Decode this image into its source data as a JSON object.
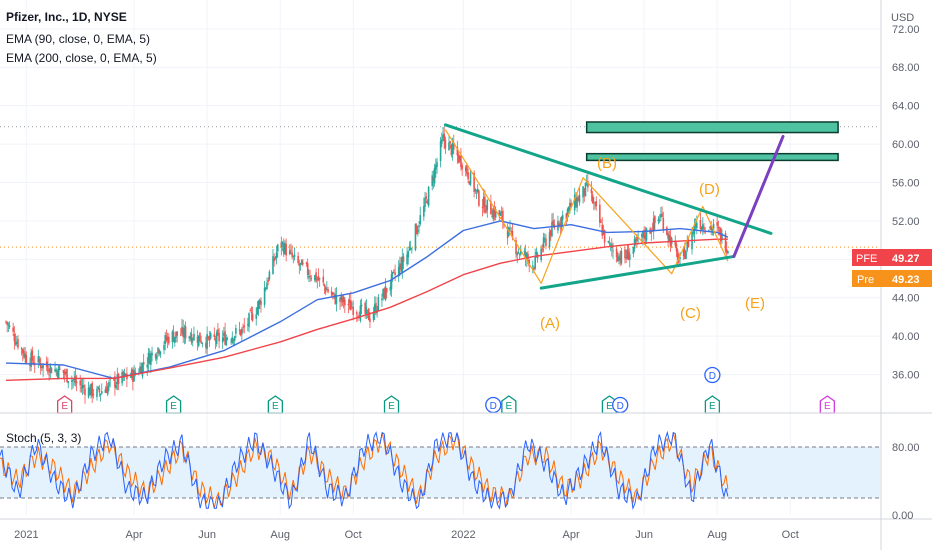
{
  "header": {
    "title": "Pfizer, Inc., 1D, NYSE",
    "indicators": [
      "EMA (90, close, 0, EMA, 5)",
      "EMA (200, close, 0, EMA, 5)"
    ]
  },
  "stoch_label": "Stoch (5, 3, 3)",
  "currency": "USD",
  "colors": {
    "up_candle": "#26a69a",
    "down_candle": "#ef5350",
    "ema90": "#3e6fe0",
    "ema200": "#f0444a",
    "wave": "#f7a21b",
    "trendline": "#12a58a",
    "projection": "#7b3fc0",
    "zone_fill": "#4fc3a1",
    "stoch_k": "#2962ff",
    "stoch_d": "#ff6d00",
    "stoch_band": "#e3f2fd"
  },
  "price_labels": [
    {
      "name": "PFE",
      "value": "49.27",
      "color": "#f0444a"
    },
    {
      "name": "Pre",
      "value": "49.23",
      "color": "#f7931a"
    }
  ],
  "wave_labels": [
    "(A)",
    "(B)",
    "(C)",
    "(D)",
    "(E)"
  ],
  "event_markers": [
    {
      "text": "E",
      "color": "#e0446a",
      "date": "2021-02-02"
    },
    {
      "text": "E",
      "color": "#089981",
      "date": "2021-05-04"
    },
    {
      "text": "E",
      "color": "#089981",
      "date": "2021-07-28"
    },
    {
      "text": "E",
      "color": "#089981",
      "date": "2021-11-02"
    },
    {
      "text": "D",
      "color": "#2962ff",
      "date": "2022-01-26"
    },
    {
      "text": "E",
      "color": "#089981",
      "date": "2022-02-08"
    },
    {
      "text": "E",
      "color": "#089981",
      "date": "2022-05-03"
    },
    {
      "text": "D",
      "color": "#2962ff",
      "date": "2022-05-12"
    },
    {
      "text": "E",
      "color": "#089981",
      "date": "2022-07-28"
    },
    {
      "text": "D",
      "color": "#2962ff",
      "date": "2022-07-28"
    },
    {
      "text": "E",
      "color": "#d63ae0",
      "date": "2022-11-01"
    }
  ],
  "chart_data": {
    "type": "line",
    "title": "Pfizer, Inc., 1D, NYSE",
    "y_unit": "USD",
    "y_ticks": [
      "72.00",
      "68.00",
      "64.00",
      "60.00",
      "56.00",
      "52.00",
      "48.00",
      "44.00",
      "40.00",
      "36.00"
    ],
    "stoch_ticks": [
      "80.00",
      "0.00"
    ],
    "x_ticks": [
      "2021",
      "Apr",
      "Jun",
      "Aug",
      "Oct",
      "2022",
      "Apr",
      "Jun",
      "Aug",
      "Oct"
    ],
    "ylim": [
      32,
      75
    ],
    "series": [
      {
        "name": "PFE",
        "style": "candles",
        "x": [
          "2020-12-15",
          "2021-01-01",
          "2021-01-15",
          "2021-02-01",
          "2021-02-15",
          "2021-03-01",
          "2021-03-15",
          "2021-04-01",
          "2021-04-15",
          "2021-05-01",
          "2021-05-15",
          "2021-06-01",
          "2021-06-15",
          "2021-07-01",
          "2021-07-15",
          "2021-08-01",
          "2021-08-15",
          "2021-09-01",
          "2021-09-15",
          "2021-10-01",
          "2021-10-15",
          "2021-11-01",
          "2021-11-15",
          "2021-12-01",
          "2021-12-15",
          "2022-01-01",
          "2022-01-15",
          "2022-02-01",
          "2022-02-15",
          "2022-03-01",
          "2022-03-15",
          "2022-04-01",
          "2022-04-15",
          "2022-05-01",
          "2022-05-15",
          "2022-06-01",
          "2022-06-15",
          "2022-07-01",
          "2022-07-15",
          "2022-08-01",
          "2022-08-10"
        ],
        "y": [
          41.5,
          37.8,
          37.0,
          36.2,
          34.8,
          34.0,
          35.2,
          36.0,
          38.0,
          40.0,
          40.3,
          39.5,
          39.8,
          40.6,
          43.5,
          49.8,
          47.5,
          46.0,
          44.0,
          43.0,
          42.0,
          45.5,
          48.5,
          54.0,
          60.5,
          58.0,
          54.0,
          52.5,
          49.0,
          47.5,
          51.0,
          53.5,
          55.5,
          49.5,
          48.0,
          50.5,
          52.5,
          47.5,
          52.0,
          51.0,
          49.27
        ]
      },
      {
        "name": "EMA (90, close, 0, EMA, 5)",
        "x": [
          "2020-12-15",
          "2021-02-01",
          "2021-03-15",
          "2021-05-01",
          "2021-06-15",
          "2021-08-01",
          "2021-09-01",
          "2021-10-01",
          "2021-11-01",
          "2021-12-01",
          "2022-01-01",
          "2022-02-01",
          "2022-03-01",
          "2022-04-01",
          "2022-05-01",
          "2022-06-01",
          "2022-07-01",
          "2022-08-01",
          "2022-08-10"
        ],
        "y": [
          37.2,
          37.0,
          35.6,
          36.8,
          38.5,
          41.5,
          43.8,
          44.5,
          45.8,
          48.2,
          51.0,
          52.0,
          51.2,
          51.6,
          50.8,
          50.9,
          51.2,
          50.8,
          50.3
        ]
      },
      {
        "name": "EMA (200, close, 0, EMA, 5)",
        "x": [
          "2020-12-15",
          "2021-02-01",
          "2021-03-15",
          "2021-05-01",
          "2021-06-15",
          "2021-08-01",
          "2021-09-01",
          "2021-10-01",
          "2021-11-01",
          "2021-12-01",
          "2022-01-01",
          "2022-02-01",
          "2022-03-01",
          "2022-04-01",
          "2022-05-01",
          "2022-06-01",
          "2022-07-01",
          "2022-08-01",
          "2022-08-10"
        ],
        "y": [
          35.4,
          35.6,
          35.6,
          36.7,
          37.8,
          39.4,
          40.7,
          41.8,
          43.0,
          44.6,
          46.4,
          47.6,
          48.3,
          48.8,
          49.3,
          49.7,
          49.9,
          50.1,
          50.1
        ]
      },
      {
        "name": "wave",
        "x": [
          "2021-12-17",
          "2022-03-07",
          "2022-04-11",
          "2022-06-24",
          "2022-07-20",
          "2022-08-10"
        ],
        "y": [
          61.5,
          45.5,
          56.5,
          46.5,
          53.5,
          47.8
        ]
      }
    ],
    "trendlines": [
      {
        "x": [
          "2021-12-17",
          "2022-09-15"
        ],
        "y": [
          62.0,
          50.7
        ]
      },
      {
        "x": [
          "2022-03-07",
          "2022-08-15"
        ],
        "y": [
          45.0,
          48.3
        ]
      },
      {
        "x": [
          "2022-08-15",
          "2022-09-25"
        ],
        "y": [
          48.3,
          60.8
        ]
      }
    ],
    "zones": [
      {
        "x": [
          "2022-04-14",
          "2022-11-10"
        ],
        "y": [
          61.2,
          62.3
        ]
      },
      {
        "x": [
          "2022-04-14",
          "2022-11-10"
        ],
        "y": [
          58.3,
          59.0
        ]
      }
    ],
    "stoch": {
      "ylim": [
        0,
        100
      ],
      "band": [
        20,
        80
      ],
      "k": [
        70,
        25,
        85,
        40,
        15,
        70,
        95,
        30,
        20,
        65,
        85,
        15,
        10,
        60,
        90,
        55,
        15,
        90,
        30,
        20,
        80,
        95,
        40,
        10,
        85,
        95,
        40,
        15,
        20,
        85,
        60,
        20,
        55,
        90,
        30,
        15,
        80,
        95,
        20,
        85,
        15
      ],
      "d": [
        60,
        40,
        70,
        55,
        25,
        55,
        85,
        50,
        25,
        50,
        80,
        30,
        15,
        45,
        80,
        65,
        25,
        75,
        45,
        25,
        65,
        90,
        55,
        20,
        70,
        90,
        55,
        25,
        20,
        70,
        70,
        30,
        45,
        80,
        45,
        20,
        65,
        90,
        35,
        75,
        30
      ]
    }
  }
}
